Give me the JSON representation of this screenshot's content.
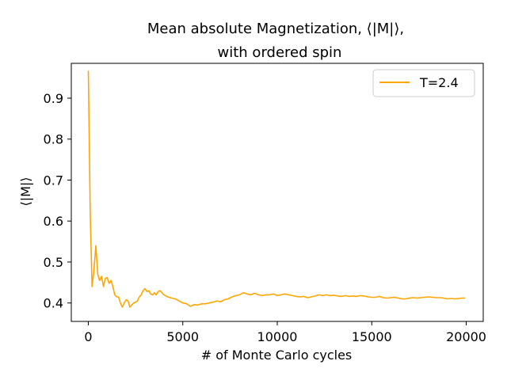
{
  "chart_data": {
    "type": "line",
    "title_line1": "Mean absolute Magnetization, ⟨|M|⟩,",
    "title_line2": "with ordered spin",
    "xlabel": "# of Monte Carlo cycles",
    "ylabel": "⟨|M|⟩",
    "xlim": [
      -900,
      20900
    ],
    "ylim": [
      0.355,
      0.985
    ],
    "xticks": [
      0,
      5000,
      10000,
      15000,
      20000
    ],
    "yticks": [
      0.4,
      0.5,
      0.6,
      0.7,
      0.8,
      0.9
    ],
    "ytick_labels": [
      "0.4",
      "0.5",
      "0.6",
      "0.7",
      "0.8",
      "0.9"
    ],
    "grid": false,
    "legend_position": "top-right",
    "series": [
      {
        "name": "T=2.4",
        "color": "#ffa500",
        "x": [
          0,
          100,
          200,
          300,
          400,
          500,
          600,
          700,
          800,
          900,
          1000,
          1100,
          1200,
          1300,
          1400,
          1500,
          1600,
          1700,
          1800,
          1900,
          2000,
          2100,
          2200,
          2300,
          2400,
          2500,
          2600,
          2700,
          2800,
          2900,
          3000,
          3100,
          3200,
          3300,
          3400,
          3500,
          3600,
          3700,
          3800,
          3900,
          4000,
          4200,
          4400,
          4600,
          4800,
          5000,
          5200,
          5400,
          5600,
          5800,
          6000,
          6200,
          6400,
          6600,
          6800,
          7000,
          7200,
          7400,
          7600,
          7800,
          8000,
          8200,
          8400,
          8600,
          8800,
          9000,
          9200,
          9400,
          9600,
          9800,
          10000,
          10200,
          10400,
          10600,
          10800,
          11000,
          11200,
          11400,
          11600,
          11800,
          12000,
          12200,
          12400,
          12600,
          12800,
          13000,
          13200,
          13400,
          13600,
          13800,
          14000,
          14200,
          14400,
          14600,
          14800,
          15000,
          15200,
          15400,
          15600,
          15800,
          16000,
          16200,
          16400,
          16600,
          16800,
          17000,
          17200,
          17400,
          17600,
          17800,
          18000,
          18200,
          18400,
          18600,
          18800,
          19000,
          19200,
          19400,
          19600,
          19800,
          19950
        ],
        "values": [
          0.967,
          0.62,
          0.44,
          0.48,
          0.54,
          0.47,
          0.455,
          0.465,
          0.44,
          0.46,
          0.462,
          0.448,
          0.455,
          0.44,
          0.42,
          0.415,
          0.415,
          0.4,
          0.39,
          0.4,
          0.408,
          0.405,
          0.39,
          0.395,
          0.4,
          0.402,
          0.405,
          0.415,
          0.42,
          0.43,
          0.435,
          0.428,
          0.43,
          0.422,
          0.42,
          0.425,
          0.42,
          0.428,
          0.43,
          0.425,
          0.42,
          0.415,
          0.412,
          0.41,
          0.405,
          0.4,
          0.398,
          0.392,
          0.396,
          0.395,
          0.398,
          0.398,
          0.4,
          0.402,
          0.405,
          0.403,
          0.408,
          0.41,
          0.415,
          0.418,
          0.42,
          0.425,
          0.422,
          0.42,
          0.424,
          0.42,
          0.418,
          0.42,
          0.42,
          0.422,
          0.418,
          0.42,
          0.422,
          0.42,
          0.418,
          0.416,
          0.415,
          0.416,
          0.413,
          0.415,
          0.417,
          0.42,
          0.418,
          0.42,
          0.418,
          0.419,
          0.417,
          0.416,
          0.418,
          0.416,
          0.417,
          0.416,
          0.418,
          0.417,
          0.415,
          0.414,
          0.414,
          0.416,
          0.413,
          0.412,
          0.413,
          0.414,
          0.412,
          0.41,
          0.41,
          0.412,
          0.413,
          0.412,
          0.413,
          0.414,
          0.415,
          0.414,
          0.413,
          0.413,
          0.412,
          0.41,
          0.411,
          0.41,
          0.411,
          0.412,
          0.412
        ]
      }
    ]
  }
}
